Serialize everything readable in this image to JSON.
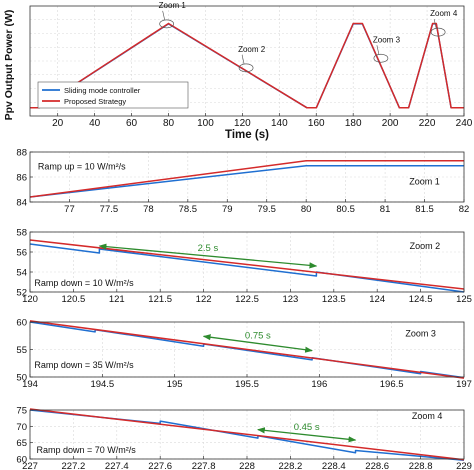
{
  "chart_data": [
    {
      "type": "line",
      "panel": "main",
      "ylabel": "Ppv Output Power (W)",
      "xlabel": "Time (s)",
      "xlim": [
        5,
        240
      ],
      "ylim": [
        20,
        100
      ],
      "xticks": [
        20,
        40,
        60,
        80,
        100,
        120,
        140,
        160,
        180,
        200,
        220,
        240
      ],
      "xtick_labels": [
        "20",
        "40",
        "60",
        "80",
        "100",
        "120",
        "140",
        "160",
        "180",
        "200",
        "220",
        "240"
      ],
      "yticks": [],
      "grid": true,
      "legend": {
        "position": "bottom-left",
        "entries": [
          "Sliding mode controller",
          "Proposed Strategy"
        ]
      },
      "series": [
        {
          "name": "Sliding mode controller",
          "color": "#1f6fd1",
          "x": [
            5,
            10,
            80,
            155,
            160,
            180,
            185,
            205,
            210,
            223,
            225,
            233,
            235,
            240
          ],
          "y": [
            26,
            26,
            87,
            26,
            26,
            87,
            87,
            26,
            26,
            87,
            87,
            26,
            26,
            26
          ]
        },
        {
          "name": "Proposed Strategy",
          "color": "#d42a2a",
          "x": [
            5,
            10,
            80,
            155,
            160,
            180,
            185,
            205,
            210,
            223,
            225,
            233,
            235,
            240
          ],
          "y": [
            26,
            26,
            87.3,
            26,
            26,
            87.3,
            87.3,
            26,
            26,
            87.3,
            87.3,
            26,
            26,
            26
          ]
        }
      ],
      "annotations": [
        {
          "text": "Zoom 1",
          "x": 79,
          "y": 87
        },
        {
          "text": "Zoom 2",
          "x": 122,
          "y": 55
        },
        {
          "text": "Zoom 3",
          "x": 195,
          "y": 62
        },
        {
          "text": "Zoom 4",
          "x": 226,
          "y": 81
        }
      ]
    },
    {
      "type": "line",
      "panel": "zoom1",
      "xlim": [
        76.5,
        82
      ],
      "ylim": [
        84,
        88
      ],
      "xticks": [
        77,
        77.5,
        78,
        78.5,
        79,
        79.5,
        80,
        80.5,
        81,
        81.5,
        82
      ],
      "xtick_labels": [
        "77",
        "77.5",
        "78",
        "78.5",
        "79",
        "79.5",
        "80",
        "80.5",
        "81",
        "81.5",
        "82"
      ],
      "yticks": [
        84,
        86,
        88
      ],
      "grid": true,
      "series": [
        {
          "name": "Sliding mode controller",
          "color": "#1f6fd1",
          "x": [
            76.5,
            80,
            82
          ],
          "y": [
            84.4,
            86.9,
            86.9
          ]
        },
        {
          "name": "Proposed Strategy",
          "color": "#d42a2a",
          "x": [
            76.5,
            80,
            82
          ],
          "y": [
            84.4,
            87.3,
            87.3
          ]
        }
      ],
      "annotations": [
        {
          "text": "Ramp up = 10 W/m²/s",
          "x": 76.6,
          "y": 86.6
        },
        {
          "text": "Zoom 1",
          "x": 81.5,
          "y": 85.4
        }
      ]
    },
    {
      "type": "line",
      "panel": "zoom2",
      "xlim": [
        120,
        125
      ],
      "ylim": [
        52,
        58
      ],
      "xticks": [
        120,
        120.5,
        121,
        121.5,
        122,
        122.5,
        123,
        123.5,
        124,
        124.5,
        125
      ],
      "xtick_labels": [
        "120",
        "120.5",
        "121",
        "121.5",
        "122",
        "122.5",
        "123",
        "123.5",
        "124",
        "124.5",
        "125"
      ],
      "yticks": [
        52,
        54,
        56,
        58
      ],
      "grid": true,
      "series": [
        {
          "name": "Sliding mode controller",
          "color": "#1f6fd1",
          "x": [
            120,
            120.8,
            120.8,
            123.3,
            123.3,
            125
          ],
          "y": [
            56.8,
            55.9,
            56.3,
            53.6,
            54.0,
            52.0
          ]
        },
        {
          "name": "Proposed Strategy",
          "color": "#d42a2a",
          "x": [
            120,
            125
          ],
          "y": [
            57.2,
            52.3
          ]
        }
      ],
      "arrow": {
        "label": "2.5 s",
        "x": [
          120.8,
          123.3
        ],
        "y": [
          56.6,
          54.6
        ],
        "color": "#2e8b2e"
      },
      "annotations": [
        {
          "text": "Ramp down = 10 W/m²/s",
          "x": 120.05,
          "y": 52.6
        },
        {
          "text": "Zoom 2",
          "x": 124.55,
          "y": 56.3
        }
      ]
    },
    {
      "type": "line",
      "panel": "zoom3",
      "xlim": [
        194,
        197
      ],
      "ylim": [
        50,
        60
      ],
      "xticks": [
        194,
        194.5,
        195,
        195.5,
        196,
        196.5,
        197
      ],
      "xtick_labels": [
        "194",
        "194.5",
        "195",
        "195.5",
        "196",
        "196.5",
        "197"
      ],
      "yticks": [
        50,
        55,
        60
      ],
      "grid": true,
      "series": [
        {
          "name": "Sliding mode controller",
          "color": "#1f6fd1",
          "x": [
            194,
            194.45,
            194.45,
            195.2,
            195.2,
            195.95,
            195.95,
            196.7,
            196.7,
            197
          ],
          "y": [
            60,
            58.2,
            58.6,
            55.6,
            56.0,
            53.1,
            53.5,
            50.6,
            51.0,
            49.9
          ]
        },
        {
          "name": "Proposed Strategy",
          "color": "#d42a2a",
          "x": [
            194,
            197
          ],
          "y": [
            60.2,
            49.8
          ]
        }
      ],
      "arrow": {
        "label": "0.75 s",
        "x": [
          195.2,
          195.95
        ],
        "y": [
          57.4,
          54.8
        ],
        "color": "#2e8b2e"
      },
      "annotations": [
        {
          "text": "Ramp down = 35 W/m²/s",
          "x": 194.03,
          "y": 51.6
        },
        {
          "text": "Zoom 3",
          "x": 196.7,
          "y": 57.4
        }
      ]
    },
    {
      "type": "line",
      "panel": "zoom4",
      "xlim": [
        227,
        229
      ],
      "ylim": [
        60,
        75
      ],
      "xticks": [
        227,
        227.2,
        227.4,
        227.6,
        227.8,
        228,
        228.2,
        228.4,
        228.6,
        228.8,
        229
      ],
      "xtick_labels": [
        "227",
        "227.2",
        "227.4",
        "227.6",
        "227.8",
        "228",
        "228.2",
        "228.4",
        "228.6",
        "228.8",
        "229"
      ],
      "yticks": [
        60,
        65,
        70,
        75
      ],
      "grid": true,
      "series": [
        {
          "name": "Sliding mode controller",
          "color": "#1f6fd1",
          "x": [
            227,
            227.6,
            227.6,
            228.05,
            228.05,
            228.5,
            228.5,
            229
          ],
          "y": [
            75,
            70.9,
            71.6,
            66.4,
            67.1,
            61.9,
            62.6,
            59.6
          ]
        },
        {
          "name": "Proposed Strategy",
          "color": "#d42a2a",
          "x": [
            227,
            229
          ],
          "y": [
            75.3,
            59.8
          ]
        }
      ],
      "arrow": {
        "label": "0.45 s",
        "x": [
          228.05,
          228.5
        ],
        "y": [
          69.0,
          65.8
        ],
        "color": "#2e8b2e"
      },
      "annotations": [
        {
          "text": "Ramp down = 70 W/m²/s",
          "x": 227.03,
          "y": 61.8
        },
        {
          "text": "Zoom 4",
          "x": 228.83,
          "y": 72.2
        }
      ]
    }
  ]
}
